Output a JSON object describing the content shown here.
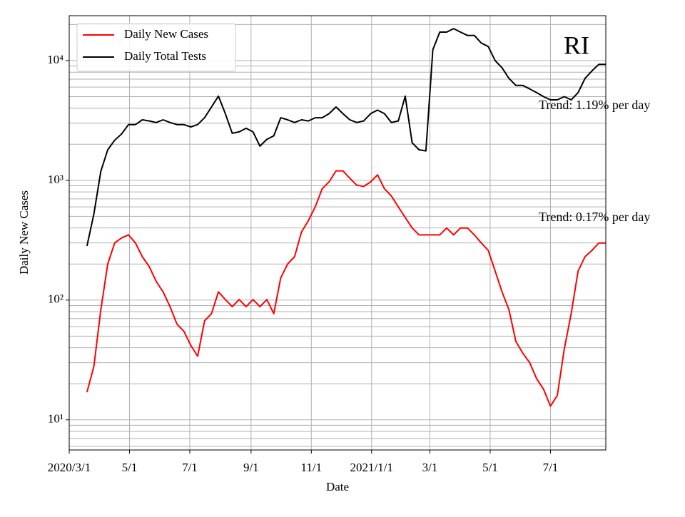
{
  "chart_data": {
    "type": "line",
    "title": "RI",
    "x_label": "Date",
    "y_label": "Daily New Cases",
    "annotations": [
      "Trend: 1.19% per day",
      "Trend: 0.17% per day"
    ],
    "log_scale": true,
    "grid": true,
    "minor_grid": true,
    "legend": "upper left",
    "xlim": [
      "2020-03-01",
      "2021-08-26"
    ],
    "xticks": [
      {
        "value": "2020-03-01",
        "label": "2020/3/1"
      },
      {
        "value": "2020-05-01",
        "label": "5/1"
      },
      {
        "value": "2020-07-01",
        "label": "7/1"
      },
      {
        "value": "2020-09-01",
        "label": "9/1"
      },
      {
        "value": "2020-11-01",
        "label": "11/1"
      },
      {
        "value": "2021-01-01",
        "label": "2021/1/1"
      },
      {
        "value": "2021-03-01",
        "label": "3/1"
      },
      {
        "value": "2021-05-01",
        "label": "5/1"
      },
      {
        "value": "2021-07-01",
        "label": "7/1"
      }
    ],
    "ylim": [
      5.6,
      23700
    ],
    "yticks": [
      {
        "value": 10,
        "label": "10¹"
      },
      {
        "value": 100,
        "label": "10²"
      },
      {
        "value": 1000,
        "label": "10³"
      },
      {
        "value": 10000,
        "label": "10⁴"
      }
    ],
    "x": [
      "2020-03-19",
      "2020-03-26",
      "2020-04-02",
      "2020-04-09",
      "2020-04-16",
      "2020-04-23",
      "2020-04-30",
      "2020-05-07",
      "2020-05-14",
      "2020-05-21",
      "2020-05-28",
      "2020-06-04",
      "2020-06-11",
      "2020-06-18",
      "2020-06-25",
      "2020-07-02",
      "2020-07-09",
      "2020-07-16",
      "2020-07-23",
      "2020-07-30",
      "2020-08-06",
      "2020-08-13",
      "2020-08-20",
      "2020-08-27",
      "2020-09-03",
      "2020-09-10",
      "2020-09-17",
      "2020-09-24",
      "2020-10-01",
      "2020-10-08",
      "2020-10-15",
      "2020-10-22",
      "2020-10-29",
      "2020-11-05",
      "2020-11-12",
      "2020-11-19",
      "2020-11-26",
      "2020-12-03",
      "2020-12-10",
      "2020-12-17",
      "2020-12-24",
      "2020-12-31",
      "2021-01-07",
      "2021-01-14",
      "2021-01-21",
      "2021-01-28",
      "2021-02-04",
      "2021-02-11",
      "2021-02-18",
      "2021-02-25",
      "2021-03-04",
      "2021-03-11",
      "2021-03-18",
      "2021-03-25",
      "2021-04-01",
      "2021-04-08",
      "2021-04-15",
      "2021-04-22",
      "2021-04-29",
      "2021-05-06",
      "2021-05-13",
      "2021-05-20",
      "2021-05-27",
      "2021-06-03",
      "2021-06-10",
      "2021-06-17",
      "2021-06-24",
      "2021-07-01",
      "2021-07-08",
      "2021-07-15",
      "2021-07-22",
      "2021-07-29",
      "2021-08-05",
      "2021-08-12",
      "2021-08-19",
      "2021-08-26"
    ],
    "series": [
      {
        "name": "Daily New Cases",
        "color": "#ff0000",
        "values": [
          17,
          28,
          83,
          200,
          300,
          330,
          350,
          300,
          230,
          190,
          143,
          117,
          88,
          63,
          55,
          42,
          34,
          67,
          77,
          117,
          101,
          88,
          101,
          88,
          101,
          88,
          101,
          77,
          153,
          200,
          230,
          370,
          460,
          600,
          850,
          970,
          1200,
          1200,
          1040,
          910,
          890,
          970,
          1110,
          850,
          740,
          600,
          490,
          400,
          350,
          350,
          350,
          350,
          400,
          350,
          400,
          400,
          350,
          300,
          260,
          175,
          117,
          83,
          45,
          36,
          30,
          22,
          18,
          13,
          16,
          39,
          77,
          175,
          230,
          260,
          300,
          300
        ]
      },
      {
        "name": "Daily Total Tests",
        "color": "#000000",
        "values": [
          283,
          525,
          1190,
          1800,
          2160,
          2440,
          2920,
          2920,
          3200,
          3130,
          3040,
          3200,
          3040,
          2920,
          2920,
          2790,
          2920,
          3330,
          4100,
          5050,
          3600,
          2470,
          2540,
          2720,
          2540,
          1930,
          2200,
          2350,
          3330,
          3200,
          3040,
          3200,
          3130,
          3330,
          3330,
          3600,
          4100,
          3600,
          3200,
          3040,
          3130,
          3600,
          3860,
          3600,
          3040,
          3130,
          5050,
          2060,
          1800,
          1760,
          12300,
          17300,
          17300,
          18500,
          17300,
          16200,
          16200,
          14000,
          13100,
          10000,
          8700,
          7100,
          6200,
          6200,
          5800,
          5400,
          5000,
          4700,
          4700,
          5000,
          4700,
          5400,
          7100,
          8200,
          9300,
          9300
        ]
      }
    ]
  }
}
